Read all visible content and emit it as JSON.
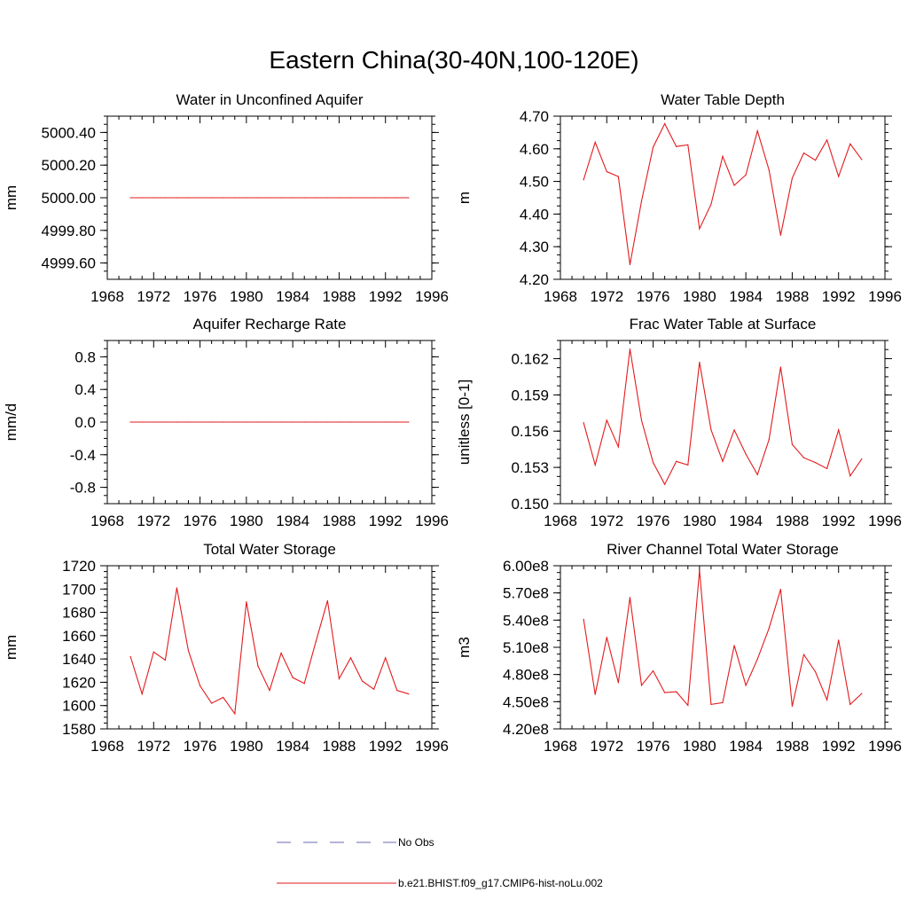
{
  "figure": {
    "title": "Eastern China(30-40N,100-120E)"
  },
  "colors": {
    "model": "#e41a1c",
    "obs": "#6a6ab0",
    "axis": "#000000"
  },
  "legend": {
    "obs_label": "No Obs",
    "model_label": "b.e21.BHIST.f09_g17.CMIP6-hist-noLu.002"
  },
  "chart_data": [
    {
      "type": "line",
      "title": "Water in Unconfined Aquifer",
      "ylabel": "mm",
      "xlim": [
        1968,
        1996
      ],
      "ylim": [
        4999.5,
        5000.5
      ],
      "yticks": [
        "4999.60",
        "4999.80",
        "5000.00",
        "5000.20",
        "5000.40"
      ],
      "ytick_values": [
        4999.6,
        4999.8,
        5000.0,
        5000.2,
        5000.4
      ],
      "xticks": [
        "1968",
        "1972",
        "1976",
        "1980",
        "1984",
        "1988",
        "1992",
        "1996"
      ],
      "x": [
        1970,
        1971,
        1972,
        1973,
        1974,
        1975,
        1976,
        1977,
        1978,
        1979,
        1980,
        1981,
        1982,
        1983,
        1984,
        1985,
        1986,
        1987,
        1988,
        1989,
        1990,
        1991,
        1992,
        1993,
        1994
      ],
      "series": [
        {
          "values": [
            5000,
            5000,
            5000,
            5000,
            5000,
            5000,
            5000,
            5000,
            5000,
            5000,
            5000,
            5000,
            5000,
            5000,
            5000,
            5000,
            5000,
            5000,
            5000,
            5000,
            5000,
            5000,
            5000,
            5000,
            5000
          ]
        }
      ]
    },
    {
      "type": "line",
      "title": "Water Table Depth",
      "ylabel": "m",
      "xlim": [
        1968,
        1996
      ],
      "ylim": [
        4.2,
        4.7
      ],
      "yticks": [
        "4.20",
        "4.30",
        "4.40",
        "4.50",
        "4.60",
        "4.70"
      ],
      "ytick_values": [
        4.2,
        4.3,
        4.4,
        4.5,
        4.6,
        4.7
      ],
      "xticks": [
        "1968",
        "1972",
        "1976",
        "1980",
        "1984",
        "1988",
        "1992",
        "1996"
      ],
      "x": [
        1970,
        1971,
        1972,
        1973,
        1974,
        1975,
        1976,
        1977,
        1978,
        1979,
        1980,
        1981,
        1982,
        1983,
        1984,
        1985,
        1986,
        1987,
        1988,
        1989,
        1990,
        1991,
        1992,
        1993,
        1994
      ],
      "series": [
        {
          "values": [
            4.505,
            4.62,
            4.53,
            4.515,
            4.245,
            4.44,
            4.605,
            4.677,
            4.607,
            4.612,
            4.355,
            4.43,
            4.577,
            4.488,
            4.52,
            4.655,
            4.535,
            4.335,
            4.51,
            4.587,
            4.565,
            4.627,
            4.515,
            4.615,
            4.567
          ]
        }
      ]
    },
    {
      "type": "line",
      "title": "Aquifer Recharge Rate",
      "ylabel": "mm/d",
      "xlim": [
        1968,
        1996
      ],
      "ylim": [
        -1.0,
        1.0
      ],
      "yticks": [
        "-0.8",
        "-0.4",
        "0.0",
        "0.4",
        "0.8"
      ],
      "ytick_values": [
        -0.8,
        -0.4,
        0.0,
        0.4,
        0.8
      ],
      "xticks": [
        "1968",
        "1972",
        "1976",
        "1980",
        "1984",
        "1988",
        "1992",
        "1996"
      ],
      "x": [
        1970,
        1971,
        1972,
        1973,
        1974,
        1975,
        1976,
        1977,
        1978,
        1979,
        1980,
        1981,
        1982,
        1983,
        1984,
        1985,
        1986,
        1987,
        1988,
        1989,
        1990,
        1991,
        1992,
        1993,
        1994
      ],
      "series": [
        {
          "values": [
            0,
            0,
            0,
            0,
            0,
            0,
            0,
            0,
            0,
            0,
            0,
            0,
            0,
            0,
            0,
            0,
            0,
            0,
            0,
            0,
            0,
            0,
            0,
            0,
            0
          ]
        }
      ]
    },
    {
      "type": "line",
      "title": "Frac Water Table at Surface",
      "ylabel": "unitless [0-1]",
      "xlim": [
        1968,
        1996
      ],
      "ylim": [
        0.15,
        0.1635
      ],
      "yticks": [
        "0.150",
        "0.153",
        "0.156",
        "0.159",
        "0.162"
      ],
      "ytick_values": [
        0.15,
        0.153,
        0.156,
        0.159,
        0.162
      ],
      "xticks": [
        "1968",
        "1972",
        "1976",
        "1980",
        "1984",
        "1988",
        "1992",
        "1996"
      ],
      "x": [
        1970,
        1971,
        1972,
        1973,
        1974,
        1975,
        1976,
        1977,
        1978,
        1979,
        1980,
        1981,
        1982,
        1983,
        1984,
        1985,
        1986,
        1987,
        1988,
        1989,
        1990,
        1991,
        1992,
        1993,
        1994
      ],
      "series": [
        {
          "values": [
            0.1567,
            0.1532,
            0.1569,
            0.1547,
            0.1628,
            0.1569,
            0.1534,
            0.1516,
            0.1535,
            0.1532,
            0.1617,
            0.1561,
            0.1535,
            0.1561,
            0.1541,
            0.1524,
            0.1553,
            0.1613,
            0.1549,
            0.1538,
            0.1534,
            0.1529,
            0.1561,
            0.1523,
            0.1537
          ]
        }
      ]
    },
    {
      "type": "line",
      "title": "Total Water Storage",
      "ylabel": "mm",
      "xlim": [
        1968,
        1996
      ],
      "ylim": [
        1580,
        1720
      ],
      "yticks": [
        "1580",
        "1600",
        "1620",
        "1640",
        "1660",
        "1680",
        "1700",
        "1720"
      ],
      "ytick_values": [
        1580,
        1600,
        1620,
        1640,
        1660,
        1680,
        1700,
        1720
      ],
      "xticks": [
        "1968",
        "1972",
        "1976",
        "1980",
        "1984",
        "1988",
        "1992",
        "1996"
      ],
      "x": [
        1970,
        1971,
        1972,
        1973,
        1974,
        1975,
        1976,
        1977,
        1978,
        1979,
        1980,
        1981,
        1982,
        1983,
        1984,
        1985,
        1986,
        1987,
        1988,
        1989,
        1990,
        1991,
        1992,
        1993,
        1994
      ],
      "series": [
        {
          "values": [
            1642,
            1610,
            1646,
            1639,
            1701,
            1647,
            1617,
            1602,
            1607,
            1593,
            1689,
            1634,
            1613,
            1645,
            1624,
            1619,
            1655,
            1690,
            1623,
            1641,
            1621,
            1614,
            1641,
            1613,
            1610
          ]
        }
      ]
    },
    {
      "type": "line",
      "title": "River Channel Total Water Storage",
      "ylabel": "m3",
      "xlim": [
        1968,
        1996
      ],
      "ylim": [
        420000000.0,
        600000000.0
      ],
      "yticks": [
        "4.20e8",
        "4.50e8",
        "4.80e8",
        "5.10e8",
        "5.40e8",
        "5.70e8",
        "6.00e8"
      ],
      "ytick_values": [
        420000000.0,
        450000000.0,
        480000000.0,
        510000000.0,
        540000000.0,
        570000000.0,
        600000000.0
      ],
      "xticks": [
        "1968",
        "1972",
        "1976",
        "1980",
        "1984",
        "1988",
        "1992",
        "1996"
      ],
      "x": [
        1970,
        1971,
        1972,
        1973,
        1974,
        1975,
        1976,
        1977,
        1978,
        1979,
        1980,
        1981,
        1982,
        1983,
        1984,
        1985,
        1986,
        1987,
        1988,
        1989,
        1990,
        1991,
        1992,
        1993,
        1994
      ],
      "series": [
        {
          "values": [
            541000000.0,
            458000000.0,
            521000000.0,
            471000000.0,
            565000000.0,
            468000000.0,
            484000000.0,
            460000000.0,
            461000000.0,
            446000000.0,
            595000000.0,
            447000000.0,
            449000000.0,
            512000000.0,
            468000000.0,
            497000000.0,
            531000000.0,
            574000000.0,
            445000000.0,
            502000000.0,
            483000000.0,
            452000000.0,
            518000000.0,
            447000000.0,
            459000000.0
          ]
        }
      ]
    }
  ]
}
